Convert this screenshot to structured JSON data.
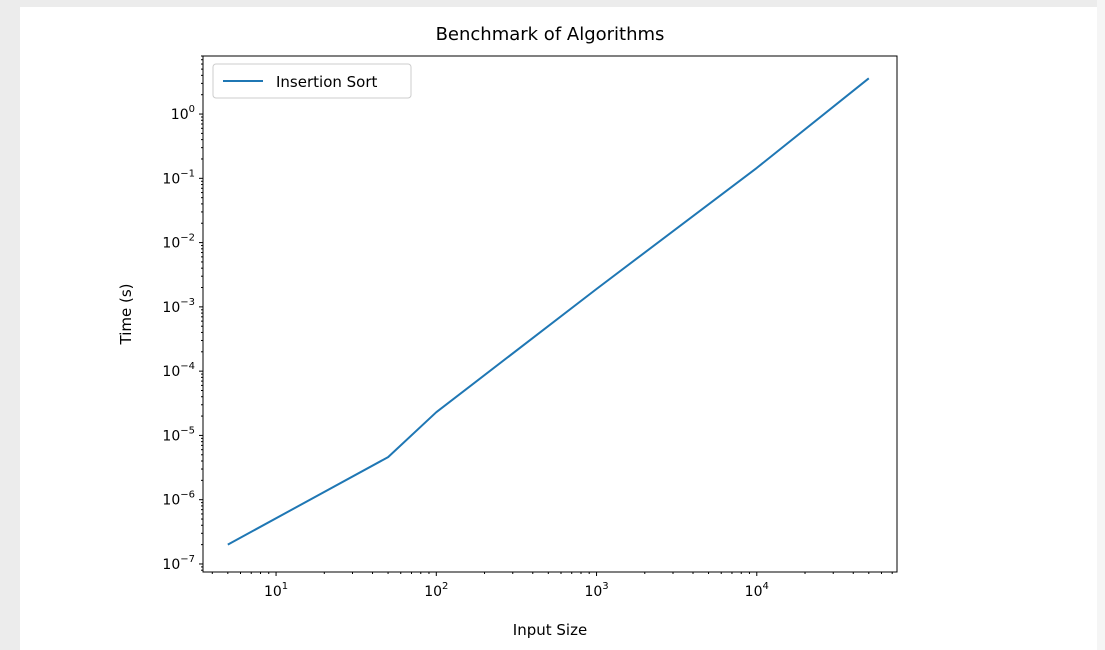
{
  "chart_data": {
    "type": "line",
    "title": "Benchmark of Algorithms",
    "xlabel": "Input Size",
    "ylabel": "Time (s)",
    "xscale": "log",
    "yscale": "log",
    "xlim": [
      3.5,
      75000
    ],
    "ylim": [
      7.5e-08,
      8.0
    ],
    "xticks": [
      {
        "value": 10,
        "base": "10",
        "exp": "1"
      },
      {
        "value": 100,
        "base": "10",
        "exp": "2"
      },
      {
        "value": 1000,
        "base": "10",
        "exp": "3"
      },
      {
        "value": 10000,
        "base": "10",
        "exp": "4"
      }
    ],
    "yticks": [
      {
        "value": 1e-07,
        "base": "10",
        "exp": "−7"
      },
      {
        "value": 1e-06,
        "base": "10",
        "exp": "−6"
      },
      {
        "value": 1e-05,
        "base": "10",
        "exp": "−5"
      },
      {
        "value": 0.0001,
        "base": "10",
        "exp": "−4"
      },
      {
        "value": 0.001,
        "base": "10",
        "exp": "−3"
      },
      {
        "value": 0.01,
        "base": "10",
        "exp": "−2"
      },
      {
        "value": 0.1,
        "base": "10",
        "exp": "−1"
      },
      {
        "value": 1,
        "base": "10",
        "exp": "0"
      }
    ],
    "series": [
      {
        "name": "Insertion Sort",
        "color": "#1f77b4",
        "x": [
          5,
          50,
          100,
          1000,
          10000,
          50000
        ],
        "y": [
          2e-07,
          4.6e-06,
          2.3e-05,
          0.0019,
          0.145,
          3.6
        ]
      }
    ],
    "legend": {
      "position": "top-left"
    },
    "grid": false
  }
}
